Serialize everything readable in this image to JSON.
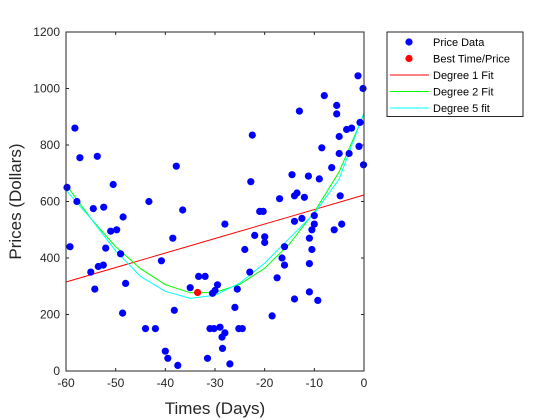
{
  "chart_data": {
    "type": "scatter",
    "xlabel": "Times (Days)",
    "ylabel": "Prices (Dollars)",
    "xlim": [
      -60,
      0
    ],
    "ylim": [
      0,
      1200
    ],
    "xticks": [
      -60,
      -50,
      -40,
      -30,
      -20,
      -10,
      0
    ],
    "yticks": [
      0,
      200,
      400,
      600,
      800,
      1000,
      1200
    ],
    "grid": false,
    "legend_position": "outside-top-right",
    "colors": {
      "price_data": "#0000ff",
      "best_point": "#ff0000",
      "degree1": "#ff0000",
      "degree2": "#00ff00",
      "degree5": "#00ffff",
      "axis": "#262626"
    },
    "legend": [
      "Price Data",
      "Best Time/Price",
      "Degree 1 Fit",
      "Degree 2 Fit",
      "Degree 5 fit"
    ],
    "series": [
      {
        "name": "Price Data",
        "kind": "scatter",
        "points": [
          [
            -59.8,
            650
          ],
          [
            -59.2,
            440
          ],
          [
            -58.2,
            860
          ],
          [
            -57.8,
            600
          ],
          [
            -57.2,
            755
          ],
          [
            -55.0,
            350
          ],
          [
            -54.5,
            575
          ],
          [
            -54.2,
            290
          ],
          [
            -53.7,
            760
          ],
          [
            -53.5,
            370
          ],
          [
            -52.5,
            375
          ],
          [
            -52.4,
            580
          ],
          [
            -52.0,
            435
          ],
          [
            -51.0,
            495
          ],
          [
            -50.5,
            660
          ],
          [
            -49.8,
            500
          ],
          [
            -49.0,
            415
          ],
          [
            -48.6,
            205
          ],
          [
            -48.5,
            545
          ],
          [
            -48.0,
            310
          ],
          [
            -44.0,
            150
          ],
          [
            -43.3,
            600
          ],
          [
            -42.0,
            150
          ],
          [
            -40.8,
            390
          ],
          [
            -40.0,
            70
          ],
          [
            -39.5,
            45
          ],
          [
            -38.5,
            470
          ],
          [
            -38.2,
            215
          ],
          [
            -37.8,
            725
          ],
          [
            -37.5,
            20
          ],
          [
            -36.5,
            570
          ],
          [
            -35.0,
            295
          ],
          [
            -33.3,
            335
          ],
          [
            -32.0,
            335
          ],
          [
            -31.5,
            45
          ],
          [
            -31.0,
            150
          ],
          [
            -30.5,
            275
          ],
          [
            -30.2,
            150
          ],
          [
            -30.0,
            285
          ],
          [
            -29.5,
            305
          ],
          [
            -29.0,
            155
          ],
          [
            -28.6,
            120
          ],
          [
            -28.5,
            80
          ],
          [
            -28.0,
            135
          ],
          [
            -28.0,
            520
          ],
          [
            -27.0,
            25
          ],
          [
            -26.0,
            225
          ],
          [
            -25.5,
            290
          ],
          [
            -25.2,
            150
          ],
          [
            -24.0,
            430
          ],
          [
            -24.5,
            150
          ],
          [
            -23.0,
            350
          ],
          [
            -22.8,
            670
          ],
          [
            -22.5,
            835
          ],
          [
            -22.0,
            480
          ],
          [
            -21.0,
            565
          ],
          [
            -20.3,
            565
          ],
          [
            -20.0,
            455
          ],
          [
            -20.0,
            475
          ],
          [
            -18.5,
            195
          ],
          [
            -17.5,
            330
          ],
          [
            -17.0,
            610
          ],
          [
            -16.5,
            400
          ],
          [
            -16.0,
            375
          ],
          [
            -16.0,
            440
          ],
          [
            -14.5,
            695
          ],
          [
            -14.0,
            530
          ],
          [
            -14.0,
            620
          ],
          [
            -14.0,
            255
          ],
          [
            -13.5,
            630
          ],
          [
            -13.0,
            920
          ],
          [
            -12.5,
            540
          ],
          [
            -12.0,
            615
          ],
          [
            -11.2,
            690
          ],
          [
            -11.0,
            470
          ],
          [
            -11.0,
            380
          ],
          [
            -11.0,
            280
          ],
          [
            -10.5,
            430
          ],
          [
            -10.5,
            500
          ],
          [
            -10.0,
            520
          ],
          [
            -10.0,
            550
          ],
          [
            -9.0,
            680
          ],
          [
            -9.3,
            250
          ],
          [
            -8.5,
            790
          ],
          [
            -8.0,
            975
          ],
          [
            -6.5,
            720
          ],
          [
            -6.0,
            500
          ],
          [
            -5.5,
            940
          ],
          [
            -5.5,
            910
          ],
          [
            -5.0,
            830
          ],
          [
            -5.0,
            770
          ],
          [
            -4.8,
            620
          ],
          [
            -4.5,
            520
          ],
          [
            -3.5,
            855
          ],
          [
            -3.0,
            770
          ],
          [
            -2.5,
            860
          ],
          [
            -1.2,
            1045
          ],
          [
            -1.0,
            795
          ],
          [
            -0.8,
            880
          ],
          [
            -0.2,
            1000
          ],
          [
            -0.1,
            730
          ]
        ]
      },
      {
        "name": "Best Time/Price",
        "kind": "scatter",
        "points": [
          [
            -33.5,
            278
          ]
        ]
      },
      {
        "name": "Degree 1 Fit",
        "kind": "line",
        "x": [
          -60,
          -45,
          -30,
          -15,
          0
        ],
        "y": [
          315,
          392,
          469,
          546,
          623
        ]
      },
      {
        "name": "Degree 2 Fit",
        "kind": "line",
        "x": [
          -60,
          -55,
          -50,
          -45,
          -40,
          -35,
          -30,
          -25,
          -20,
          -15,
          -10,
          -5,
          0
        ],
        "y": [
          660,
          540,
          440,
          362,
          306,
          277,
          278,
          307,
          364,
          450,
          563,
          705,
          910
        ]
      },
      {
        "name": "Degree 5 fit",
        "kind": "line",
        "x": [
          -60,
          -55,
          -50,
          -45,
          -40,
          -35,
          -30,
          -25,
          -20,
          -15,
          -10,
          -5,
          0
        ],
        "y": [
          640,
          540,
          425,
          335,
          282,
          257,
          268,
          311,
          382,
          470,
          558,
          680,
          915
        ]
      }
    ]
  }
}
